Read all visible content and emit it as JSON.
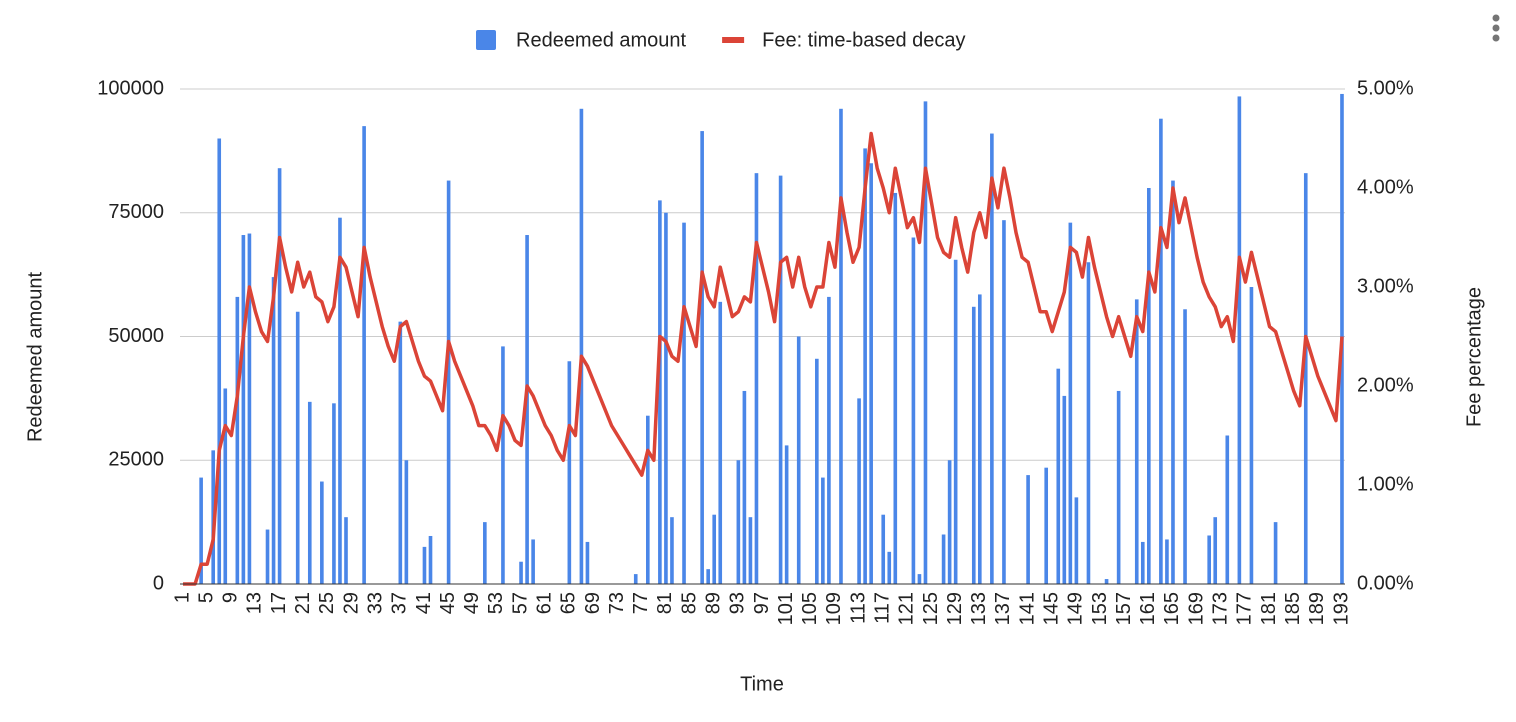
{
  "chart_data": {
    "type": "bar-line",
    "x_label": "Time",
    "y_label": "Redeemed amount",
    "y2_label": "Fee percentage",
    "legend": "top",
    "grid": true,
    "x": [
      1,
      2,
      3,
      4,
      5,
      6,
      7,
      8,
      9,
      10,
      11,
      12,
      13,
      14,
      15,
      16,
      17,
      18,
      19,
      20,
      21,
      22,
      23,
      24,
      25,
      26,
      27,
      28,
      29,
      30,
      31,
      32,
      33,
      34,
      35,
      36,
      37,
      38,
      39,
      40,
      41,
      42,
      43,
      44,
      45,
      46,
      47,
      48,
      49,
      50,
      51,
      52,
      53,
      54,
      55,
      56,
      57,
      58,
      59,
      60,
      61,
      62,
      63,
      64,
      65,
      66,
      67,
      68,
      69,
      70,
      71,
      72,
      73,
      74,
      75,
      76,
      77,
      78,
      79,
      80,
      81,
      82,
      83,
      84,
      85,
      86,
      87,
      88,
      89,
      90,
      91,
      92,
      93,
      94,
      95,
      96,
      97,
      98,
      99,
      100,
      101,
      102,
      103,
      104,
      105,
      106,
      107,
      108,
      109,
      110,
      111,
      112,
      113,
      114,
      115,
      116,
      117,
      118,
      119,
      120,
      121,
      122,
      123,
      124,
      125,
      126,
      127,
      128,
      129,
      130,
      131,
      132,
      133,
      134,
      135,
      136,
      137,
      138,
      139,
      140,
      141,
      142,
      143,
      144,
      145,
      146,
      147,
      148,
      149,
      150,
      151,
      152,
      153,
      154,
      155,
      156,
      157,
      158,
      159,
      160,
      161,
      162,
      163,
      164,
      165,
      166,
      167,
      168,
      169,
      170,
      171,
      172,
      173,
      174,
      175,
      176,
      177,
      178,
      179,
      180,
      181,
      182,
      183,
      184,
      185,
      186,
      187,
      188,
      189,
      190,
      191,
      192,
      193
    ],
    "xlim": [
      0.5,
      193.5
    ],
    "xticks": [
      1,
      5,
      9,
      13,
      17,
      21,
      25,
      29,
      33,
      37,
      41,
      45,
      49,
      53,
      57,
      61,
      65,
      69,
      73,
      77,
      81,
      85,
      89,
      93,
      97,
      101,
      105,
      109,
      113,
      117,
      121,
      125,
      129,
      133,
      137,
      141,
      145,
      149,
      153,
      157,
      161,
      165,
      169,
      173,
      177,
      181,
      185,
      189,
      193
    ],
    "ylim": [
      0,
      100000
    ],
    "yticks": [
      0,
      25000,
      50000,
      75000,
      100000
    ],
    "y2lim": [
      0,
      5
    ],
    "y2ticks": [
      {
        "value": 0,
        "label": "0.00%"
      },
      {
        "value": 1,
        "label": "1.00%"
      },
      {
        "value": 2,
        "label": "2.00%"
      },
      {
        "value": 3,
        "label": "3.00%"
      },
      {
        "value": 4,
        "label": "4.00%"
      },
      {
        "value": 5,
        "label": "5.00%"
      }
    ],
    "series": [
      {
        "name": "Redeemed amount",
        "type": "bar",
        "color": "#4a86e8",
        "values": [
          0,
          0,
          0,
          21500,
          0,
          27000,
          90000,
          39500,
          0,
          58000,
          70500,
          70800,
          0,
          0,
          11000,
          62000,
          84000,
          0,
          0,
          55000,
          0,
          36800,
          0,
          20700,
          0,
          36500,
          74000,
          13500,
          0,
          0,
          92500,
          0,
          0,
          0,
          0,
          0,
          53000,
          25000,
          0,
          0,
          7500,
          9700,
          0,
          0,
          81500,
          0,
          0,
          0,
          0,
          0,
          12500,
          0,
          0,
          48000,
          0,
          0,
          4500,
          70500,
          9000,
          0,
          0,
          0,
          0,
          0,
          45000,
          0,
          96000,
          8500,
          0,
          0,
          0,
          0,
          0,
          0,
          0,
          2000,
          0,
          34000,
          0,
          77500,
          75000,
          13500,
          0,
          73000,
          0,
          0,
          91500,
          3000,
          14000,
          57000,
          0,
          0,
          25000,
          39000,
          13500,
          83000,
          0,
          0,
          0,
          82500,
          28000,
          0,
          50000,
          0,
          0,
          45500,
          21500,
          58000,
          0,
          96000,
          0,
          0,
          37500,
          88000,
          85000,
          0,
          14000,
          6500,
          79000,
          0,
          0,
          70000,
          2000,
          97500,
          0,
          0,
          10000,
          25000,
          65500,
          0,
          0,
          56000,
          58500,
          0,
          91000,
          0,
          73500,
          0,
          0,
          0,
          22000,
          0,
          0,
          23500,
          0,
          43500,
          38000,
          73000,
          17500,
          0,
          65000,
          0,
          0,
          1000,
          0,
          39000,
          0,
          0,
          57500,
          8500,
          80000,
          0,
          94000,
          9000,
          81500,
          0,
          55500,
          0,
          0,
          0,
          9800,
          13500,
          0,
          30000,
          0,
          98500,
          0,
          60000,
          0,
          0,
          0,
          12500,
          0,
          0,
          0,
          0,
          83000,
          0,
          0,
          0,
          0,
          0,
          99000
        ]
      },
      {
        "name": "Fee: time-based decay",
        "type": "line",
        "axis": "y2",
        "color": "#db4437",
        "values": [
          0,
          0,
          0,
          0.2,
          0.2,
          0.45,
          1.35,
          1.6,
          1.5,
          1.9,
          2.5,
          3.0,
          2.75,
          2.55,
          2.45,
          2.9,
          3.5,
          3.2,
          2.95,
          3.25,
          3.0,
          3.15,
          2.9,
          2.85,
          2.65,
          2.8,
          3.3,
          3.2,
          2.95,
          2.7,
          3.4,
          3.1,
          2.85,
          2.6,
          2.4,
          2.25,
          2.6,
          2.65,
          2.45,
          2.25,
          2.1,
          2.05,
          1.9,
          1.75,
          2.45,
          2.25,
          2.1,
          1.95,
          1.8,
          1.6,
          1.6,
          1.5,
          1.35,
          1.7,
          1.6,
          1.45,
          1.4,
          2.0,
          1.9,
          1.75,
          1.6,
          1.5,
          1.35,
          1.25,
          1.6,
          1.5,
          2.3,
          2.2,
          2.05,
          1.9,
          1.75,
          1.6,
          1.5,
          1.4,
          1.3,
          1.2,
          1.1,
          1.35,
          1.25,
          2.5,
          2.45,
          2.3,
          2.25,
          2.8,
          2.6,
          2.4,
          3.15,
          2.9,
          2.8,
          3.2,
          2.95,
          2.7,
          2.75,
          2.9,
          2.85,
          3.45,
          3.2,
          2.95,
          2.65,
          3.25,
          3.3,
          3.0,
          3.3,
          3.0,
          2.8,
          3.0,
          3.0,
          3.45,
          3.2,
          3.9,
          3.55,
          3.25,
          3.4,
          4.0,
          4.55,
          4.2,
          4.0,
          3.75,
          4.2,
          3.9,
          3.6,
          3.7,
          3.45,
          4.2,
          3.85,
          3.5,
          3.35,
          3.3,
          3.7,
          3.4,
          3.15,
          3.55,
          3.75,
          3.5,
          4.1,
          3.8,
          4.2,
          3.9,
          3.55,
          3.3,
          3.25,
          3.0,
          2.75,
          2.75,
          2.55,
          2.75,
          2.95,
          3.4,
          3.35,
          3.1,
          3.5,
          3.2,
          2.95,
          2.7,
          2.5,
          2.7,
          2.5,
          2.3,
          2.7,
          2.55,
          3.15,
          2.95,
          3.6,
          3.4,
          4.0,
          3.65,
          3.9,
          3.6,
          3.3,
          3.05,
          2.9,
          2.8,
          2.6,
          2.7,
          2.45,
          3.3,
          3.05,
          3.35,
          3.1,
          2.85,
          2.6,
          2.55,
          2.35,
          2.15,
          1.95,
          1.8,
          2.5,
          2.3,
          2.1,
          1.95,
          1.8,
          1.65,
          2.5
        ]
      }
    ]
  }
}
